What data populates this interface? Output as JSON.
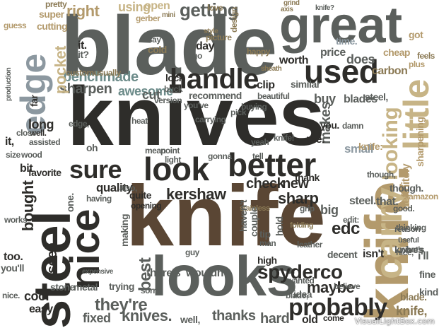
{
  "palette": {
    "background": "#ffffff",
    "dark": "#2e2d2a",
    "gray": "#5b5f5c",
    "gray_green": "#77807a",
    "brown": "#5a4634",
    "olive": "#8b7a55",
    "tan": "#b39a6c",
    "khaki": "#c7b486",
    "slate": "#8c98a0",
    "teal_gray": "#6d8c8a"
  },
  "words": [
    {
      "text": "blade",
      "color": "#5b5f5c"
    },
    {
      "text": "great",
      "color": "#5b5f5c"
    },
    {
      "text": "knives",
      "color": "#2e2d2a"
    },
    {
      "text": "knife",
      "color": "#5a4634"
    },
    {
      "text": "knife.",
      "color": "#b39a6c"
    },
    {
      "text": "steel",
      "color": "#2e2d2a"
    },
    {
      "text": "looks",
      "color": "#5b5f5c"
    },
    {
      "text": "look",
      "color": "#2e2d2a"
    },
    {
      "text": "nice",
      "color": "#2e2d2a"
    },
    {
      "text": "used",
      "color": "#2e2d2a"
    },
    {
      "text": "handle",
      "color": "#2e2d2a"
    },
    {
      "text": "better",
      "color": "#2e2d2a"
    },
    {
      "text": "carry",
      "color": "#c7b486"
    },
    {
      "text": "little",
      "color": "#c7b486"
    },
    {
      "text": "edge",
      "color": "#8c98a0"
    },
    {
      "text": "sure",
      "color": "#2e2d2a"
    },
    {
      "text": "probably",
      "color": "#2e2d2a"
    },
    {
      "text": "spyderco",
      "color": "#2e2d2a"
    },
    {
      "text": "benchmade",
      "color": "#6d8c8a"
    },
    {
      "text": "kershaw",
      "color": "#2e2d2a"
    },
    {
      "text": "quality",
      "color": "#2e2d2a"
    },
    {
      "text": "price",
      "color": "#5b5f5c"
    },
    {
      "text": "getting",
      "color": "#5b5f5c"
    },
    {
      "text": "looking",
      "color": "#c7b486"
    },
    {
      "text": "sharpen",
      "color": "#5b5f5c"
    },
    {
      "text": "awesome",
      "color": "#6d8c8a"
    },
    {
      "text": "check",
      "color": "#2e2d2a"
    },
    {
      "text": "they're",
      "color": "#5b5f5c"
    },
    {
      "text": "thanks",
      "color": "#5b5f5c"
    },
    {
      "text": "fixed",
      "color": "#5b5f5c"
    },
    {
      "text": "knives.",
      "color": "#5b5f5c"
    },
    {
      "text": "maybe",
      "color": "#2e2d2a"
    },
    {
      "text": "edc",
      "color": "#2e2d2a"
    },
    {
      "text": "sharp",
      "color": "#2e2d2a"
    },
    {
      "text": "new",
      "color": "#2e2d2a"
    },
    {
      "text": "buy",
      "color": "#5b5f5c"
    },
    {
      "text": "blades",
      "color": "#5b5f5c"
    },
    {
      "text": "does",
      "color": "#5b5f5c"
    },
    {
      "text": "cut",
      "color": "#5b5f5c"
    },
    {
      "text": "lock",
      "color": "#2e2d2a"
    },
    {
      "text": "bit",
      "color": "#2e2d2a"
    },
    {
      "text": "long",
      "color": "#2e2d2a"
    },
    {
      "text": "right",
      "color": "#b39a6c"
    },
    {
      "text": "using",
      "color": "#c7b486"
    },
    {
      "text": "open",
      "color": "#c7b486"
    },
    {
      "text": "pocket",
      "color": "#c7b486"
    },
    {
      "text": "worth",
      "color": "#2e2d2a"
    },
    {
      "text": "small",
      "color": "#8c98a0"
    },
    {
      "text": "hard",
      "color": "#5b5f5c"
    },
    {
      "text": "best",
      "color": "#5b5f5c"
    },
    {
      "text": "bought",
      "color": "#2e2d2a"
    },
    {
      "text": "definitely",
      "color": "#b39a6c"
    },
    {
      "text": "sharpening",
      "color": "#b39a6c"
    },
    {
      "text": "favorite",
      "color": "#2e2d2a"
    },
    {
      "text": "stone",
      "color": "#5b5f5c"
    },
    {
      "text": "metal",
      "color": "#5b5f5c"
    },
    {
      "text": "cool",
      "color": "#2e2d2a"
    },
    {
      "text": "seen",
      "color": "#2e2d2a"
    },
    {
      "text": "wouldn't",
      "color": "#5b5f5c"
    },
    {
      "text": "there's",
      "color": "#5b5f5c"
    },
    {
      "text": "recommend",
      "color": "#5b5f5c"
    },
    {
      "text": "carbon",
      "color": "#8b7a55"
    },
    {
      "text": "cheap",
      "color": "#b39a6c"
    },
    {
      "text": "makes",
      "color": "#5b5f5c"
    },
    {
      "text": "idea",
      "color": "#5b5f5c"
    },
    {
      "text": "steel.",
      "color": "#5b5f5c"
    },
    {
      "text": "knife,",
      "color": "#8b7a55"
    },
    {
      "text": "old",
      "color": "#2e2d2a"
    },
    {
      "text": "isn't",
      "color": "#2e2d2a"
    },
    {
      "text": "blade,",
      "color": "#5b5f5c"
    },
    {
      "text": "tip",
      "color": "#5b5f5c"
    },
    {
      "text": "man",
      "color": "#5b5f5c"
    },
    {
      "text": "big",
      "color": "#5b5f5c"
    },
    {
      "text": "fine",
      "color": "#5b5f5c"
    },
    {
      "text": "kind",
      "color": "#5b5f5c"
    },
    {
      "text": "easy",
      "color": "#2e2d2a"
    },
    {
      "text": "too.",
      "color": "#2e2d2a"
    },
    {
      "text": "you'll",
      "color": "#5b5f5c"
    },
    {
      "text": "wanted",
      "color": "#5b5f5c"
    },
    {
      "text": "trying",
      "color": "#5b5f5c"
    },
    {
      "text": "come",
      "color": "#2e2d2a"
    },
    {
      "text": "that.",
      "color": "#5b5f5c"
    },
    {
      "text": "steel,",
      "color": "#5b5f5c"
    },
    {
      "text": "me.",
      "color": "#2e2d2a"
    },
    {
      "text": "you.",
      "color": "#2e2d2a"
    },
    {
      "text": "well.",
      "color": "#2e2d2a"
    },
    {
      "text": "well,",
      "color": "#5b5f5c"
    },
    {
      "text": "it.",
      "color": "#2e2d2a"
    },
    {
      "text": "it,",
      "color": "#2e2d2a"
    },
    {
      "text": "thank",
      "color": "#2e2d2a"
    },
    {
      "text": "pretty",
      "color": "#8b7a55"
    },
    {
      "text": "sheath",
      "color": "#8b7a55"
    },
    {
      "text": "mini",
      "color": "#8b7a55"
    },
    {
      "text": "love",
      "color": "#8b7a55"
    },
    {
      "text": "grind",
      "color": "#8b7a55"
    },
    {
      "text": "day",
      "color": "#2e2d2a"
    },
    {
      "text": "ago",
      "color": "#5b5f5c"
    },
    {
      "text": "say",
      "color": "#5b5f5c"
    },
    {
      "text": "super",
      "color": "#b39a6c"
    },
    {
      "text": "cutting",
      "color": "#b39a6c"
    },
    {
      "text": "guess",
      "color": "#b39a6c"
    },
    {
      "text": "cold",
      "color": "#8b7a55"
    },
    {
      "text": "knife:",
      "color": "#b39a6c"
    },
    {
      "text": "though,",
      "color": "#5b5f5c"
    },
    {
      "text": "though.",
      "color": "#5b5f5c"
    },
    {
      "text": "opening",
      "color": "#2e2d2a"
    },
    {
      "text": "quite",
      "color": "#2e2d2a"
    },
    {
      "text": "similar",
      "color": "#5b5f5c"
    },
    {
      "text": "clip",
      "color": "#2e2d2a"
    },
    {
      "text": "beautiful",
      "color": "#5b5f5c"
    },
    {
      "text": "mean",
      "color": "#5b5f5c"
    },
    {
      "text": "point",
      "color": "#5b5f5c"
    },
    {
      "text": "custom",
      "color": "#8b7a55"
    },
    {
      "text": "usually",
      "color": "#8b7a55"
    },
    {
      "text": "high",
      "color": "#2e2d2a"
    },
    {
      "text": "damn",
      "color": "#5b5f5c"
    },
    {
      "text": "wood",
      "color": "#5b5f5c"
    },
    {
      "text": "close",
      "color": "#5b5f5c"
    },
    {
      "text": "edge,",
      "color": "#5b5f5c"
    },
    {
      "text": "happy",
      "color": "#8b7a55"
    },
    {
      "text": "feels",
      "color": "#8b7a55"
    },
    {
      "text": "plus",
      "color": "#b39a6c"
    },
    {
      "text": "stainless",
      "color": "#8b7a55"
    },
    {
      "text": "gerber",
      "color": "#b39a6c"
    },
    {
      "text": "buck",
      "color": "#5b5f5c"
    },
    {
      "text": "pick",
      "color": "#5b5f5c"
    },
    {
      "text": "folding",
      "color": "#8b7a55"
    },
    {
      "text": "leather",
      "color": "#5b5f5c"
    },
    {
      "text": "tell",
      "color": "#5b5f5c"
    },
    {
      "text": "version",
      "color": "#5b5f5c"
    },
    {
      "text": "knife!",
      "color": "#5b5f5c"
    },
    {
      "text": "far",
      "color": "#2e2d2a"
    },
    {
      "text": "size",
      "color": "#5b5f5c"
    },
    {
      "text": "buying",
      "color": "#5b5f5c"
    },
    {
      "text": "got",
      "color": "#b39a6c"
    },
    {
      "text": "one.",
      "color": "#5b5f5c"
    },
    {
      "text": "nice.",
      "color": "#5b5f5c"
    },
    {
      "text": "blade.",
      "color": "#8b7a55"
    },
    {
      "text": "grip",
      "color": "#5b5f5c"
    },
    {
      "text": "good.",
      "color": "#5b5f5c"
    },
    {
      "text": "nice,",
      "color": "#5b5f5c"
    },
    {
      "text": "it?",
      "color": "#5b5f5c"
    },
    {
      "text": "yeah",
      "color": "#5b5f5c"
    },
    {
      "text": "edit:",
      "color": "#5b5f5c"
    },
    {
      "text": "hold",
      "color": "#5b5f5c"
    },
    {
      "text": "heat",
      "color": "#5b5f5c"
    },
    {
      "text": "works",
      "color": "#5b5f5c"
    },
    {
      "text": "having",
      "color": "#5b5f5c"
    },
    {
      "text": "expensive",
      "color": "#5b5f5c"
    },
    {
      "text": "guy",
      "color": "#5b5f5c"
    },
    {
      "text": "thinking",
      "color": "#5b5f5c"
    },
    {
      "text": "useful",
      "color": "#5b5f5c"
    },
    {
      "text": "making",
      "color": "#5b5f5c"
    },
    {
      "text": "sorry",
      "color": "#5b5f5c"
    },
    {
      "text": "believe",
      "color": "#5b5f5c"
    },
    {
      "text": "knives,",
      "color": "#5b5f5c"
    },
    {
      "text": "light",
      "color": "#5b5f5c"
    },
    {
      "text": "carrying",
      "color": "#5b5f5c"
    },
    {
      "text": "you've",
      "color": "#5b5f5c"
    },
    {
      "text": "oh",
      "color": "#5b5f5c"
    },
    {
      "text": "assisted",
      "color": "#5b5f5c"
    },
    {
      "text": "decent",
      "color": "#5b5f5c"
    },
    {
      "text": "design",
      "color": "#8b7a55"
    },
    {
      "text": "picture",
      "color": "#8b7a55"
    },
    {
      "text": "style",
      "color": "#8b7a55"
    },
    {
      "text": "time.",
      "color": "#8c98a0"
    },
    {
      "text": "axis",
      "color": "#8b7a55"
    },
    {
      "text": "knife?",
      "color": "#5b5f5c"
    },
    {
      "text": "haven't",
      "color": "#5b5f5c"
    },
    {
      "text": "gonna",
      "color": "#5b5f5c"
    },
    {
      "text": "i'll",
      "color": "#5b5f5c"
    },
    {
      "text": "what's",
      "color": "#5b5f5c"
    },
    {
      "text": "also,",
      "color": "#5b5f5c"
    },
    {
      "text": "couple",
      "color": "#5b5f5c"
    },
    {
      "text": "rust",
      "color": "#5b5f5c"
    },
    {
      "text": "reason",
      "color": "#5b5f5c"
    },
    {
      "text": "amazon",
      "color": "#b39a6c"
    },
    {
      "text": "production",
      "color": "#5b5f5c"
    }
  ],
  "watermark": "VisualLightBox.com"
}
